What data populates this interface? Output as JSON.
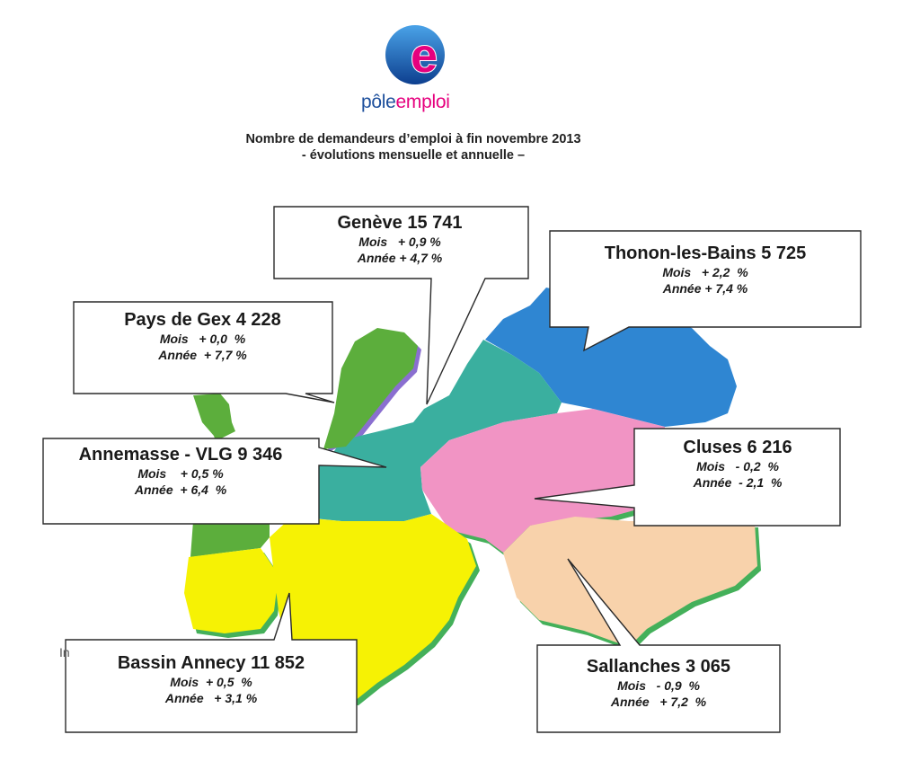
{
  "brand": {
    "name_part1": "pôle",
    "name_part2": "emploi",
    "logo_letter": "e"
  },
  "title": {
    "line1": "Nombre de demandeurs d’emploi à fin novembre 2013",
    "line2": "- évolutions mensuelle et annuelle –"
  },
  "stray_text": "In",
  "colors": {
    "pays_de_gex": "#5cae3c",
    "annemasse": "#3aaf9f",
    "thonon": "#2f86d2",
    "cluses": "#f194c4",
    "sallanches": "#f8d2ab",
    "annecy": "#f6f204",
    "border": "#44b05a",
    "brand_blue": "#1d4f9c",
    "brand_pink": "#e6007e"
  },
  "zones": [
    {
      "name": "Genève",
      "value": "15 741",
      "mois": "Mois   + 0,9 %",
      "annee": "Année + 4,7 %"
    },
    {
      "name": "Thonon-les-Bains",
      "value": "5 725",
      "mois": "Mois   + 2,2  %",
      "annee": "Année + 7,4 %"
    },
    {
      "name": "Pays de Gex",
      "value": "4 228",
      "mois": "Mois   + 0,0  %",
      "annee": "Année  + 7,7 %"
    },
    {
      "name": "Annemasse - VLG",
      "value": "9 346",
      "mois": "Mois    + 0,5 %",
      "annee": "Année  + 6,4  %"
    },
    {
      "name": "Cluses",
      "value": "6 216",
      "mois": "Mois   - 0,2  %",
      "annee": "Année  - 2,1  %"
    },
    {
      "name": "Bassin Annecy",
      "value": "11 852",
      "mois": "Mois  + 0,5  %",
      "annee": "Année   + 3,1 %"
    },
    {
      "name": "Sallanches",
      "value": "3 065",
      "mois": "Mois   - 0,9  %",
      "annee": "Année   + 7,2  %"
    }
  ]
}
